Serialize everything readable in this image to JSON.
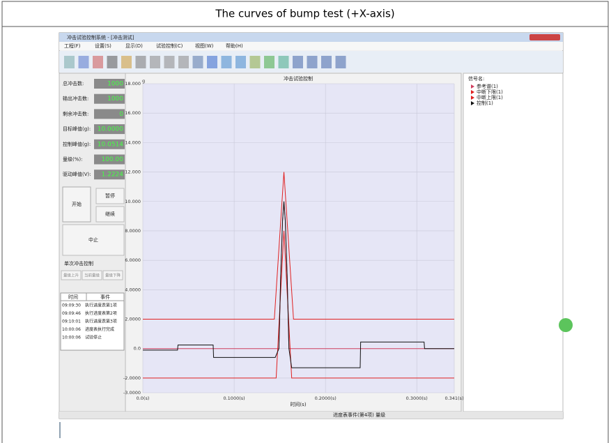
{
  "header": {
    "title": "The curves of bump test (+X-axis)"
  },
  "app": {
    "title_bar": "冲击试验控制系统 - [冲击测试]",
    "menu": [
      "工程(F)",
      "设置(S)",
      "显示(D)",
      "试验控制(C)",
      "视图(W)",
      "帮助(H)"
    ],
    "left_panel": {
      "fields": [
        {
          "label": "总冲击数:",
          "value": "1000"
        },
        {
          "label": "输出冲击数:",
          "value": "1000"
        },
        {
          "label": "剩余冲击数:",
          "value": "0"
        },
        {
          "label": "目标峰值(g):",
          "value": "10.0000"
        },
        {
          "label": "控制峰值(g):",
          "value": "10.0514"
        },
        {
          "label": "量级(%):",
          "value": "100.00"
        },
        {
          "label": "驱动峰值(V):",
          "value": "1.2224"
        }
      ],
      "start": "开始",
      "pause": "暂停",
      "resume": "继续",
      "abort": "中止",
      "single_control": "单次冲击控制",
      "level_buttons": [
        "量级上升",
        "当前量级",
        "量级下降"
      ],
      "log": {
        "headers": [
          "时间",
          "事件"
        ],
        "rows": [
          [
            "09:09:30",
            "执行进度表第1项"
          ],
          [
            "09:09:46",
            "执行进度表第2项"
          ],
          [
            "09:10:01",
            "执行进度表第3项"
          ],
          [
            "10:00:06",
            "进度表执行完成"
          ],
          [
            "10:00:06",
            "试验停止"
          ]
        ]
      }
    },
    "legend_title": "信号名:",
    "status": "进度表事件(第4项) 量级"
  },
  "chart_data": {
    "type": "line",
    "title": "冲击试验控制",
    "y_unit": "g",
    "x_label": "时间(s)",
    "xlim": [
      0,
      0.341
    ],
    "ylim": [
      -3,
      18
    ],
    "xticks": [
      {
        "value": 0,
        "label": "0.0(s)"
      },
      {
        "value": 0.1,
        "label": "0.1000(s)"
      },
      {
        "value": 0.2,
        "label": "0.2000(s)"
      },
      {
        "value": 0.3,
        "label": "0.3000(s)"
      },
      {
        "value": 0.341,
        "label": "0.341(s)"
      }
    ],
    "yticks": [
      {
        "value": 18,
        "label": "18.000"
      },
      {
        "value": 16,
        "label": "16.000"
      },
      {
        "value": 14,
        "label": "14.000"
      },
      {
        "value": 12,
        "label": "12.000"
      },
      {
        "value": 10,
        "label": "10.000"
      },
      {
        "value": 8,
        "label": "8.0000"
      },
      {
        "value": 6,
        "label": "6.0000"
      },
      {
        "value": 4,
        "label": "4.0000"
      },
      {
        "value": 2,
        "label": "2.0000"
      },
      {
        "value": 0,
        "label": "0.0"
      },
      {
        "value": -2,
        "label": "-2.0000"
      },
      {
        "value": -3,
        "label": "-3.0000"
      }
    ],
    "grid": true,
    "series": [
      {
        "name": "参考谱(1)",
        "color": "#d04060",
        "x": [
          0,
          0.149,
          0.151,
          0.153,
          0.1545,
          0.156,
          0.158,
          0.16,
          0.341
        ],
        "values": [
          0,
          0,
          5,
          8.7,
          10,
          8.7,
          5,
          0,
          0
        ]
      },
      {
        "name": "中断下限(1)",
        "color": "#e02020",
        "x": [
          0,
          0.146,
          0.1545,
          0.163,
          0.341
        ],
        "values": [
          -2,
          -2,
          8,
          -2,
          -2
        ]
      },
      {
        "name": "中断上限(1)",
        "color": "#e02020",
        "x": [
          0,
          0.144,
          0.1545,
          0.165,
          0.341
        ],
        "values": [
          2,
          2,
          12,
          2,
          2
        ]
      },
      {
        "name": "控制(1)",
        "color": "#111111",
        "x": [
          0,
          0.038,
          0.0385,
          0.077,
          0.0775,
          0.145,
          0.149,
          0.151,
          0.153,
          0.1545,
          0.156,
          0.158,
          0.16,
          0.163,
          0.238,
          0.2385,
          0.308,
          0.3085,
          0.341
        ],
        "values": [
          -0.1,
          -0.1,
          0.25,
          0.25,
          -0.6,
          -0.6,
          0,
          5,
          8.7,
          10,
          8.7,
          5,
          0,
          -1.3,
          -1.3,
          0.45,
          0.45,
          0,
          0
        ]
      }
    ]
  }
}
